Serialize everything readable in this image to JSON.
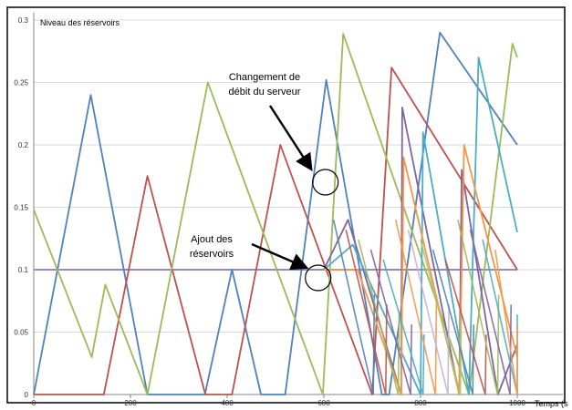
{
  "chart_data": {
    "type": "line",
    "title": "",
    "xlabel": "Temps (s",
    "ylabel": "Niveau des réservoirs",
    "xlim": [
      0,
      1000
    ],
    "ylim": [
      0,
      0.3
    ],
    "xticks": [
      0,
      200,
      400,
      600,
      800,
      1000
    ],
    "xtick_labels": [
      "0",
      "200",
      "400",
      "600",
      "800",
      "1000"
    ],
    "yticks": [
      0,
      0.05,
      0.1,
      0.15,
      0.2,
      0.25,
      0.3
    ],
    "ytick_labels": [
      "0",
      "0.05",
      "0.1",
      "0.15",
      "0.2",
      "0.25",
      "0.3"
    ],
    "grid": true,
    "legend": "none",
    "reference_line": {
      "y": 0.1,
      "color": "#9b87bd"
    },
    "series": [
      {
        "color": "#4f81bd",
        "points": [
          [
            0,
            0
          ],
          [
            118,
            0.24
          ],
          [
            235,
            0
          ],
          [
            354,
            0
          ],
          [
            410,
            0.1
          ],
          [
            470,
            0
          ],
          [
            520,
            0
          ],
          [
            605,
            0.252
          ],
          [
            720,
            0
          ],
          [
            735,
            0
          ],
          [
            840,
            0.29
          ],
          [
            1000,
            0.2
          ]
        ]
      },
      {
        "color": "#c0504d",
        "points": [
          [
            0,
            0
          ],
          [
            145,
            0
          ],
          [
            235,
            0.175
          ],
          [
            355,
            0
          ],
          [
            410,
            0
          ],
          [
            510,
            0.2
          ],
          [
            605,
            0.1
          ],
          [
            700,
            0
          ],
          [
            740,
            0.262
          ],
          [
            1000,
            0.1
          ]
        ]
      },
      {
        "color": "#9bbb59",
        "points": [
          [
            0,
            0.148
          ],
          [
            120,
            0.03
          ],
          [
            148,
            0.088
          ],
          [
            235,
            0
          ],
          [
            360,
            0.25
          ],
          [
            598,
            0
          ],
          [
            640,
            0.289
          ],
          [
            900,
            0
          ],
          [
            990,
            0.281
          ],
          [
            1000,
            0.27
          ]
        ]
      },
      {
        "color": "#8064a2",
        "points": [
          [
            600,
            0.1
          ],
          [
            650,
            0.14
          ],
          [
            760,
            0
          ],
          [
            762,
            0.23
          ],
          [
            880,
            0
          ],
          [
            885,
            0.18
          ],
          [
            960,
            0
          ],
          [
            1000,
            0.04
          ]
        ]
      },
      {
        "color": "#4bacc6",
        "points": [
          [
            600,
            0.1
          ],
          [
            660,
            0.12
          ],
          [
            800,
            0
          ],
          [
            805,
            0.21
          ],
          [
            900,
            0
          ],
          [
            920,
            0.27
          ],
          [
            1000,
            0.13
          ]
        ]
      },
      {
        "color": "#f79646",
        "points": [
          [
            600,
            0.1
          ],
          [
            670,
            0.1
          ],
          [
            760,
            0
          ],
          [
            765,
            0.19
          ],
          [
            880,
            0
          ],
          [
            890,
            0.2
          ],
          [
            1000,
            0.03
          ]
        ]
      }
    ],
    "sawtooth_region": {
      "x_start": 600,
      "x_end": 960,
      "teeth": 14,
      "colors": [
        "#4f81bd",
        "#c0504d",
        "#9bbb59",
        "#8064a2",
        "#4bacc6",
        "#f79646",
        "#c3b1d6",
        "#a6c96a"
      ]
    },
    "annotations": [
      {
        "lines": [
          "Changement de",
          "débit du serveur"
        ],
        "point": [
          605,
          0.18
        ]
      },
      {
        "lines": [
          "Ajout des",
          "réservoirs"
        ],
        "point": [
          590,
          0.1
        ]
      }
    ]
  }
}
